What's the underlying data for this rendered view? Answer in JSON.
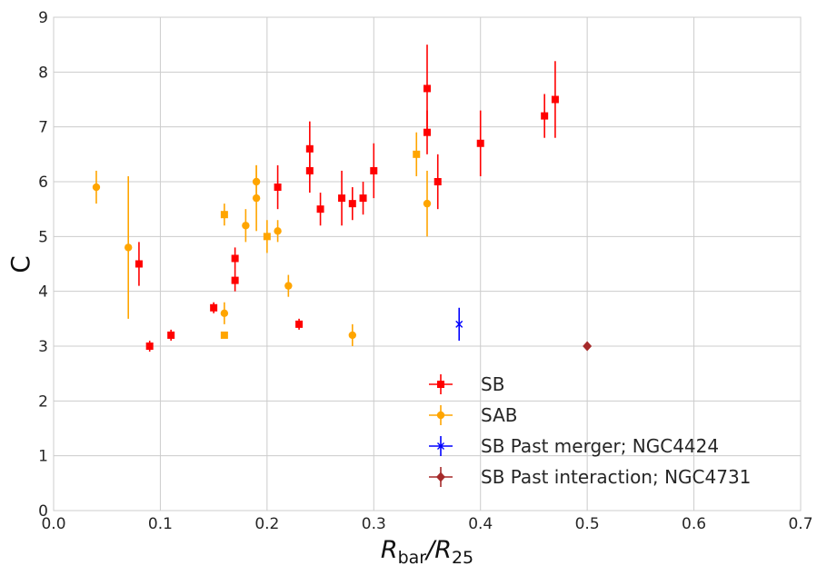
{
  "chart_data": {
    "type": "scatter",
    "title": "",
    "xlabel": "R",
    "xlabel_sub1": "bar",
    "xlabel_sep": "/R",
    "xlabel_sub2": "25",
    "ylabel": "C",
    "xlim": [
      0,
      0.7
    ],
    "ylim": [
      0,
      9
    ],
    "xticks": [
      "0.0",
      "0.1",
      "0.2",
      "0.3",
      "0.4",
      "0.5",
      "0.6",
      "0.7"
    ],
    "yticks": [
      "0",
      "1",
      "2",
      "3",
      "4",
      "5",
      "6",
      "7",
      "8",
      "9"
    ],
    "grid": true,
    "legend_position": "lower-right",
    "series": [
      {
        "name": "SB",
        "color": "#ff0000",
        "marker": "square",
        "points": [
          {
            "x": 0.08,
            "y": 4.5,
            "err": 0.4
          },
          {
            "x": 0.09,
            "y": 3.0,
            "err": 0.1
          },
          {
            "x": 0.11,
            "y": 3.2,
            "err": 0.1
          },
          {
            "x": 0.15,
            "y": 3.7,
            "err": 0.1
          },
          {
            "x": 0.17,
            "y": 4.6,
            "err": 0.2
          },
          {
            "x": 0.17,
            "y": 4.2,
            "err": 0.2
          },
          {
            "x": 0.21,
            "y": 5.9,
            "err": 0.4
          },
          {
            "x": 0.23,
            "y": 3.4,
            "err": 0.1
          },
          {
            "x": 0.24,
            "y": 6.6,
            "err": 0.5
          },
          {
            "x": 0.24,
            "y": 6.2,
            "err": 0.4
          },
          {
            "x": 0.25,
            "y": 5.5,
            "err": 0.3
          },
          {
            "x": 0.27,
            "y": 5.7,
            "err": 0.5
          },
          {
            "x": 0.28,
            "y": 5.6,
            "err": 0.3
          },
          {
            "x": 0.29,
            "y": 5.7,
            "err": 0.3
          },
          {
            "x": 0.3,
            "y": 6.2,
            "err": 0.5
          },
          {
            "x": 0.35,
            "y": 7.7,
            "err": 0.8
          },
          {
            "x": 0.35,
            "y": 6.9,
            "err": 0.4
          },
          {
            "x": 0.36,
            "y": 6.0,
            "err": 0.5
          },
          {
            "x": 0.4,
            "y": 6.7,
            "err": 0.6
          },
          {
            "x": 0.46,
            "y": 7.2,
            "err": 0.4
          },
          {
            "x": 0.47,
            "y": 7.5,
            "err": 0.7
          }
        ]
      },
      {
        "name": "SAB",
        "color": "#ffa500",
        "marker": "circle",
        "points": [
          {
            "x": 0.04,
            "y": 5.9,
            "err": 0.3,
            "marker": "circle"
          },
          {
            "x": 0.07,
            "y": 4.8,
            "err": 1.3,
            "marker": "circle"
          },
          {
            "x": 0.16,
            "y": 5.4,
            "err": 0.2,
            "marker": "square"
          },
          {
            "x": 0.16,
            "y": 3.6,
            "err": 0.2,
            "marker": "circle"
          },
          {
            "x": 0.16,
            "y": 3.2,
            "err": 0.05,
            "marker": "square"
          },
          {
            "x": 0.18,
            "y": 5.2,
            "err": 0.3,
            "marker": "circle"
          },
          {
            "x": 0.19,
            "y": 6.0,
            "err": 0.3,
            "marker": "circle"
          },
          {
            "x": 0.19,
            "y": 5.7,
            "err": 0.6,
            "marker": "circle"
          },
          {
            "x": 0.2,
            "y": 5.0,
            "err": 0.3,
            "marker": "square"
          },
          {
            "x": 0.21,
            "y": 5.1,
            "err": 0.2,
            "marker": "circle"
          },
          {
            "x": 0.22,
            "y": 4.1,
            "err": 0.2,
            "marker": "circle"
          },
          {
            "x": 0.28,
            "y": 3.2,
            "err": 0.2,
            "marker": "circle"
          },
          {
            "x": 0.34,
            "y": 6.5,
            "err": 0.4,
            "marker": "square"
          },
          {
            "x": 0.35,
            "y": 5.6,
            "err": 0.6,
            "marker": "circle"
          }
        ]
      },
      {
        "name": "SB Past merger; NGC4424",
        "color": "#0000ff",
        "marker": "x",
        "points": [
          {
            "x": 0.38,
            "y": 3.4,
            "err": 0.3
          }
        ]
      },
      {
        "name": "SB Past interaction; NGC4731",
        "color": "#a52a2a",
        "marker": "diamond",
        "points": [
          {
            "x": 0.5,
            "y": 3.0,
            "err": 0.05
          }
        ]
      }
    ]
  }
}
